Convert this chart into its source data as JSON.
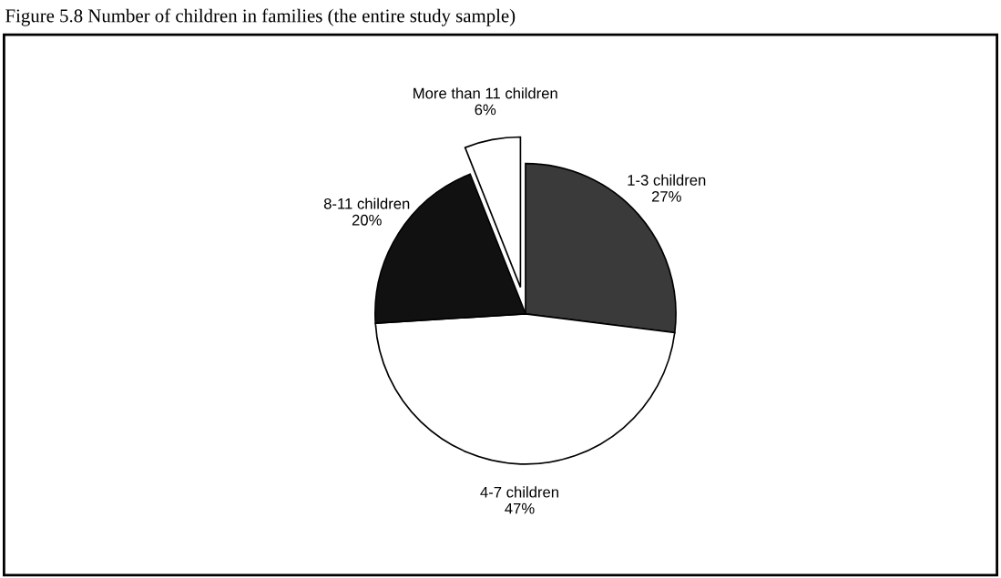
{
  "chart_data": {
    "type": "pie",
    "title": "Figure 5.8 Number of children in families (the entire study sample)",
    "categories": [
      "1-3 children",
      "4-7 children",
      "8-11 children",
      "More than 11 children"
    ],
    "values": [
      27,
      47,
      20,
      6
    ],
    "value_labels": [
      "27%",
      "47%",
      "20%",
      "6%"
    ],
    "colors": [
      "#3a3a3a",
      "#ffffff",
      "#111111",
      "#ffffff"
    ],
    "legend": false
  }
}
